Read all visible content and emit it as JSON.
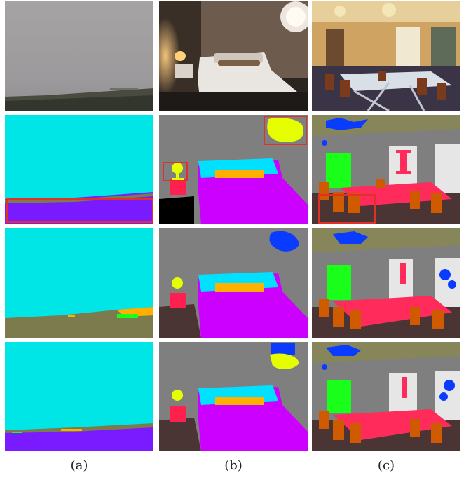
{
  "figure": {
    "columns": [
      {
        "label": "(a)"
      },
      {
        "label": "(b)"
      },
      {
        "label": "(c)"
      }
    ],
    "rows": 4
  },
  "colors": {
    "sky": "#00e5e5",
    "ground_purple": "#7a1aff",
    "wall_gray": "#7f7f7f",
    "floor_brown": "#4a3434",
    "bed_magenta": "#cc00ff",
    "pillow_cyan": "#00e0ff",
    "pillow_orange": "#ffb000",
    "lamp_yellow": "#e6ff00",
    "nightstand_red": "#ff2050",
    "chair_orange": "#d05a00",
    "table_red": "#ff2b5a",
    "ceiling_olive": "#86865a",
    "window_white": "#e6e6e6",
    "plant_green": "#19ff19",
    "chandelier_blue": "#0a3cff",
    "highlight_box": "#e0302a",
    "terrain_olive": "#7b7b4e"
  }
}
